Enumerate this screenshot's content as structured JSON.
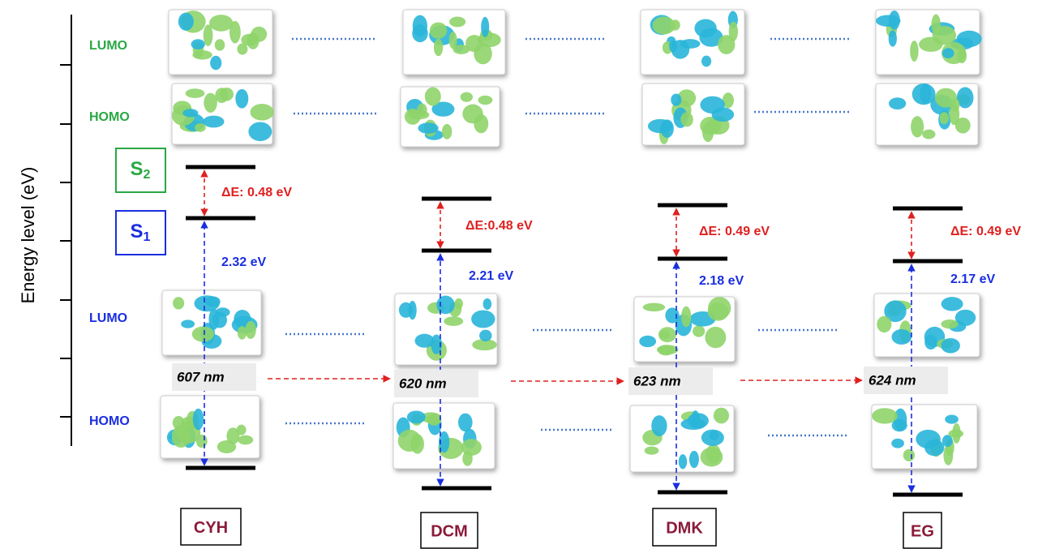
{
  "axis_label": "Energy level (eV)",
  "upper_labels": {
    "lumo": "LUMO",
    "homo": "HOMO"
  },
  "states": [
    {
      "letter": "S",
      "sub": "2"
    },
    {
      "letter": "S",
      "sub": "1"
    }
  ],
  "lower_labels": {
    "lumo": "LUMO",
    "homo": "HOMO"
  },
  "columns": [
    {
      "solvent": "CYH",
      "delta_e": "ΔE: 0.48 eV",
      "gap": "2.32 eV",
      "wavelength": "607 nm"
    },
    {
      "solvent": "DCM",
      "delta_e": "ΔE:0.48 eV",
      "gap": "2.21 eV",
      "wavelength": "620 nm"
    },
    {
      "solvent": "DMK",
      "delta_e": "ΔE: 0.49 eV",
      "gap": "2.18 eV",
      "wavelength": "623 nm"
    },
    {
      "solvent": "EG",
      "delta_e": "ΔE: 0.49 eV",
      "gap": "2.17 eV",
      "wavelength": "624 nm"
    }
  ]
}
